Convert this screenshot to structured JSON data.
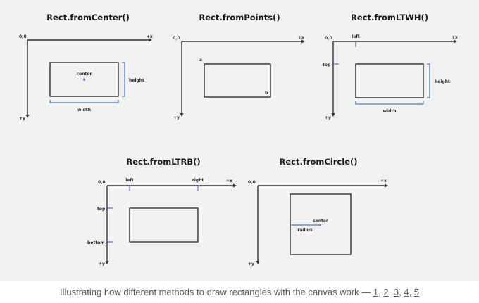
{
  "diagrams": {
    "from_center": {
      "title": "Rect.fromCenter()",
      "origin": "0,0",
      "x_axis": "+x",
      "y_axis": "+y",
      "center": "center",
      "height": "height",
      "width": "width"
    },
    "from_points": {
      "title": "Rect.fromPoints()",
      "origin": "0,0",
      "x_axis": "+x",
      "y_axis": "+y",
      "point_a": "a",
      "point_b": "b"
    },
    "from_ltwh": {
      "title": "Rect.fromLTWH()",
      "origin": "0,0",
      "x_axis": "+x",
      "y_axis": "+y",
      "left": "left",
      "top": "top",
      "height": "height",
      "width": "width"
    },
    "from_ltrb": {
      "title": "Rect.fromLTRB()",
      "origin": "0,0",
      "x_axis": "+x",
      "y_axis": "+y",
      "left": "left",
      "right": "right",
      "top": "top",
      "bottom": "bottom"
    },
    "from_circle": {
      "title": "Rect.fromCircle()",
      "origin": "0,0",
      "x_axis": "+x",
      "y_axis": "+y",
      "center": "center",
      "radius": "radius"
    }
  },
  "caption": {
    "text": "Illustrating how different methods to draw rectangles with the canvas work —",
    "links": [
      "1",
      "2",
      "3",
      "4",
      "5"
    ]
  },
  "colors": {
    "background": "#f2f2f2",
    "accent_blue": "#4a7fd0",
    "stroke": "#222222"
  }
}
